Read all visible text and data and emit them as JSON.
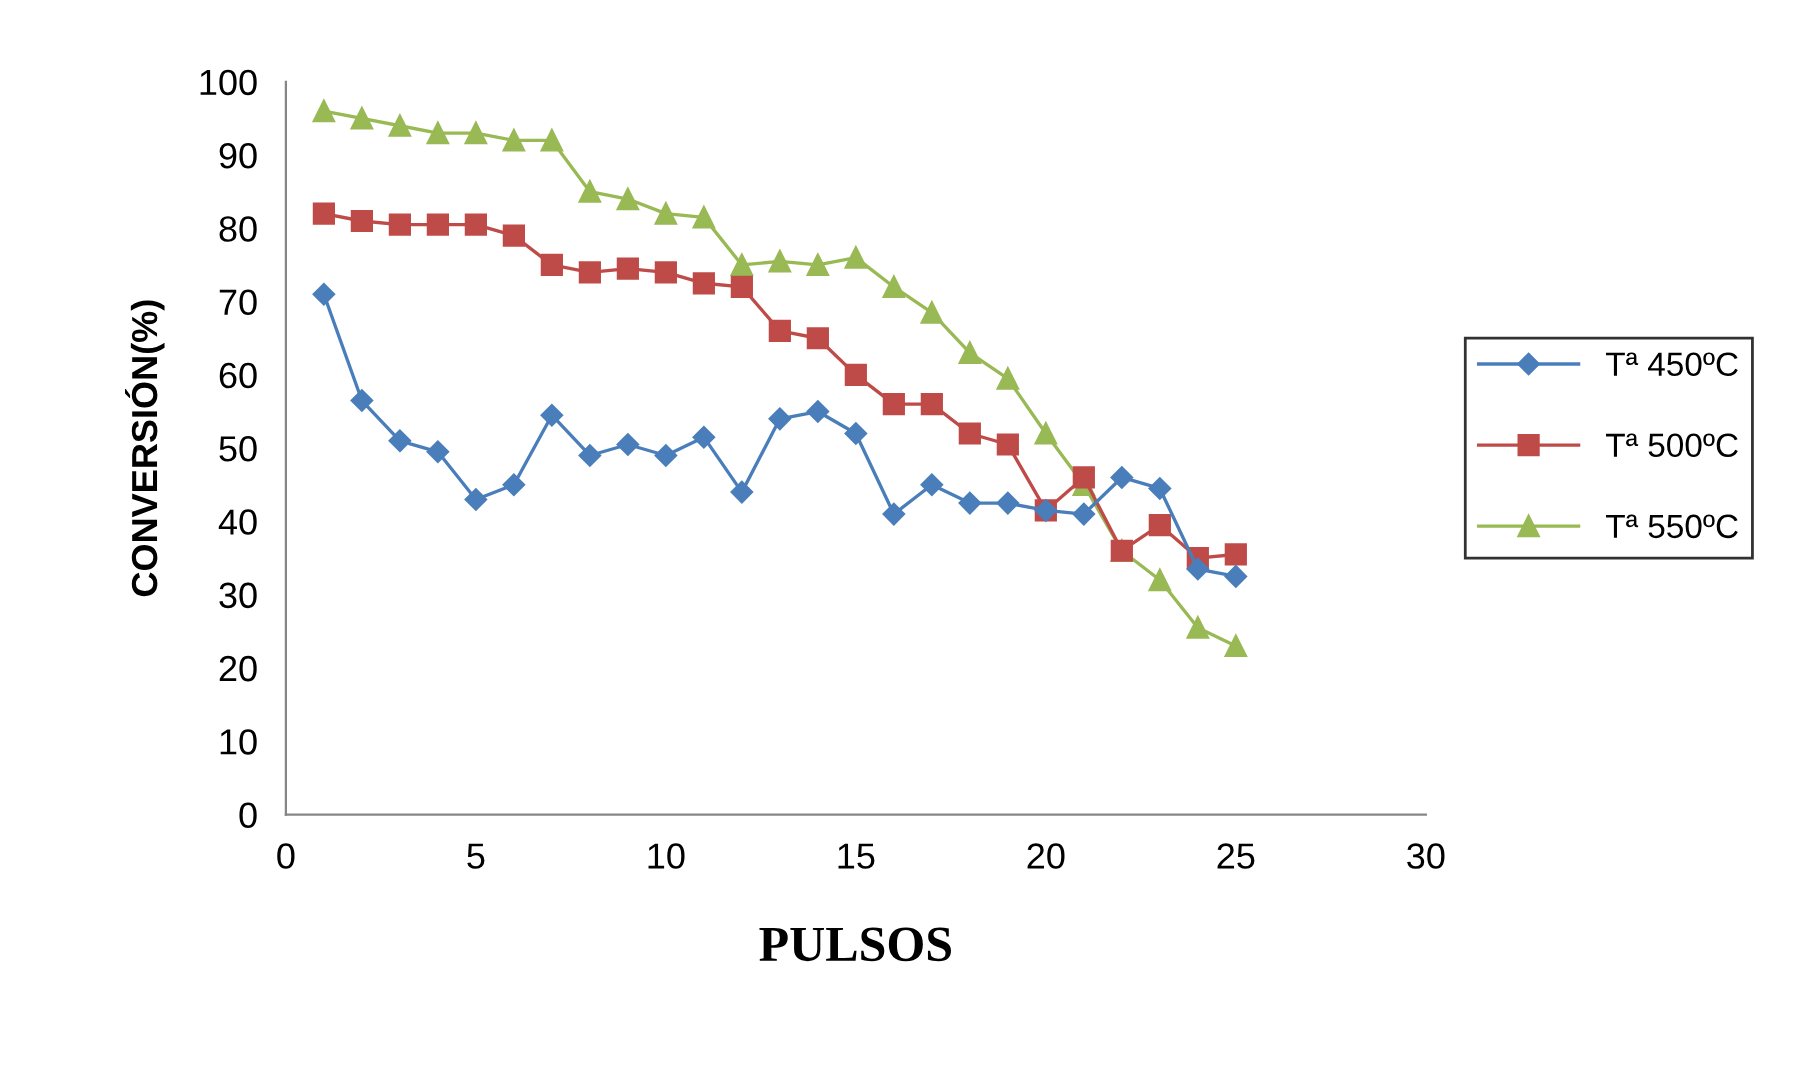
{
  "chart_data": {
    "type": "line",
    "xlabel": "PULSOS",
    "ylabel": "CONVERSIÓN(%)",
    "x": [
      1,
      2,
      3,
      4,
      5,
      6,
      7,
      8,
      9,
      10,
      11,
      12,
      13,
      14,
      15,
      16,
      17,
      18,
      19,
      20,
      21,
      22,
      23,
      24,
      25
    ],
    "series": [
      {
        "name": "Tª 450ºC",
        "color": "#4a7ebb",
        "marker": "diamond",
        "values": [
          71,
          56.5,
          51,
          49.5,
          43,
          45,
          54.5,
          49,
          50.5,
          49,
          51.5,
          44,
          54,
          55,
          52,
          41,
          45,
          42.5,
          42.5,
          41.5,
          41,
          46,
          44.5,
          33.5,
          32.5
        ]
      },
      {
        "name": "Tª 500ºC",
        "color": "#be4b48",
        "marker": "square",
        "values": [
          82,
          81,
          80.5,
          80.5,
          80.5,
          79,
          75,
          74,
          74.5,
          74,
          72.5,
          72,
          66,
          65,
          60,
          56,
          56,
          52,
          50.5,
          41.5,
          46,
          36,
          39.5,
          35,
          35.5
        ]
      },
      {
        "name": "Tª 550ºC",
        "color": "#98b954",
        "marker": "triangle",
        "values": [
          96,
          95,
          94,
          93,
          93,
          92,
          92,
          85,
          84,
          82,
          81.5,
          75,
          75.5,
          75,
          76,
          72,
          68.5,
          63,
          59.5,
          52,
          45,
          36,
          32,
          25.5,
          23
        ]
      }
    ],
    "xlim": [
      0,
      30
    ],
    "xticks": [
      0,
      5,
      10,
      15,
      20,
      25,
      30
    ],
    "ylim": [
      0,
      100
    ],
    "yticks": [
      0,
      10,
      20,
      30,
      40,
      50,
      60,
      70,
      80,
      90,
      100
    ],
    "grid": false,
    "legend": "right",
    "line_style": "solid"
  }
}
